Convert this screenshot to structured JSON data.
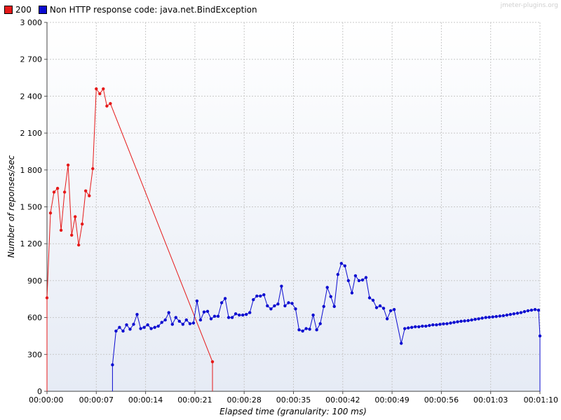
{
  "watermark": "jmeter-plugins.org",
  "colors": {
    "series_200": "#e61919",
    "series_bind": "#0b0bd0",
    "grid": "#c8c8c8",
    "plot_bg_top": "#ffffff",
    "plot_bg_bottom": "#e6ebf5"
  },
  "chart_data": {
    "type": "line",
    "title": "",
    "xlabel": "Elapsed time (granularity: 100 ms)",
    "ylabel": "Number of reponses/sec",
    "xlim_seconds": [
      0,
      70
    ],
    "ylim": [
      0,
      3000
    ],
    "y_ticks": [
      0,
      300,
      600,
      900,
      1200,
      1500,
      1800,
      2100,
      2400,
      2700,
      3000
    ],
    "y_tick_labels": [
      "0",
      "300",
      "600",
      "900",
      "1 200",
      "1 500",
      "1 800",
      "2 100",
      "2 400",
      "2 700",
      "3 000"
    ],
    "x_ticks_seconds": [
      0,
      7,
      14,
      21,
      28,
      35,
      42,
      49,
      56,
      63,
      70
    ],
    "x_tick_labels": [
      "00:00:00",
      "00:00:07",
      "00:00:14",
      "00:00:21",
      "00:00:28",
      "00:00:35",
      "00:00:42",
      "00:00:49",
      "00:00:56",
      "00:01:03",
      "00:01:10"
    ],
    "grid": true,
    "legend_position": "top-left",
    "series": [
      {
        "name": "200",
        "x_seconds": [
          0.0,
          0.0,
          0.5,
          1.0,
          1.5,
          2.0,
          2.5,
          3.0,
          3.5,
          4.0,
          4.5,
          5.0,
          5.5,
          6.0,
          6.5,
          7.0,
          7.5,
          8.0,
          8.5,
          9.0,
          23.5,
          23.5
        ],
        "values": [
          0,
          760,
          1450,
          1620,
          1650,
          1310,
          1620,
          1840,
          1270,
          1420,
          1190,
          1360,
          1630,
          1590,
          1810,
          2460,
          2420,
          2460,
          2320,
          2340,
          240,
          0
        ]
      },
      {
        "name": "Non HTTP response code: java.net.BindException",
        "x_seconds": [
          9.3,
          9.3,
          9.8,
          10.3,
          10.8,
          11.3,
          11.8,
          12.3,
          12.8,
          13.3,
          13.8,
          14.3,
          14.8,
          15.3,
          15.8,
          16.3,
          16.8,
          17.3,
          17.8,
          18.3,
          18.8,
          19.3,
          19.8,
          20.3,
          20.8,
          21.3,
          21.8,
          22.3,
          22.8,
          23.3,
          23.8,
          24.3,
          24.8,
          25.3,
          25.8,
          26.3,
          26.8,
          27.3,
          27.8,
          28.3,
          28.8,
          29.3,
          29.8,
          30.3,
          30.8,
          31.3,
          31.8,
          32.3,
          32.8,
          33.3,
          33.8,
          34.3,
          34.8,
          35.3,
          35.8,
          36.3,
          36.8,
          37.3,
          37.8,
          38.3,
          38.8,
          39.3,
          39.8,
          40.3,
          40.8,
          41.3,
          41.8,
          42.3,
          42.8,
          43.3,
          43.8,
          44.3,
          44.8,
          45.3,
          45.8,
          46.3,
          46.8,
          47.3,
          47.8,
          48.3,
          48.8,
          49.3,
          50.3,
          50.8,
          51.3,
          51.8,
          52.3,
          52.8,
          53.3,
          53.8,
          54.3,
          54.8,
          55.3,
          55.8,
          56.3,
          56.8,
          57.3,
          57.8,
          58.3,
          58.8,
          59.3,
          59.8,
          60.3,
          60.8,
          61.3,
          61.8,
          62.3,
          62.8,
          63.3,
          63.8,
          64.3,
          64.8,
          65.3,
          65.8,
          66.3,
          66.8,
          67.3,
          67.8,
          68.3,
          68.8,
          69.3,
          69.8,
          70.0,
          70.0
        ],
        "values": [
          0,
          215,
          490,
          520,
          490,
          540,
          505,
          545,
          625,
          510,
          520,
          540,
          510,
          520,
          530,
          560,
          580,
          640,
          545,
          600,
          570,
          545,
          580,
          550,
          555,
          735,
          580,
          645,
          650,
          590,
          610,
          610,
          720,
          755,
          600,
          600,
          630,
          620,
          620,
          625,
          640,
          745,
          775,
          775,
          785,
          695,
          670,
          695,
          710,
          855,
          695,
          720,
          715,
          670,
          500,
          490,
          510,
          505,
          620,
          500,
          550,
          690,
          845,
          770,
          690,
          950,
          1040,
          1020,
          900,
          800,
          940,
          900,
          905,
          925,
          760,
          740,
          680,
          695,
          675,
          590,
          655,
          665,
          390,
          510,
          515,
          520,
          525,
          525,
          530,
          530,
          535,
          540,
          540,
          545,
          548,
          550,
          555,
          560,
          565,
          570,
          572,
          575,
          580,
          585,
          590,
          595,
          600,
          602,
          605,
          608,
          612,
          615,
          620,
          625,
          630,
          635,
          640,
          648,
          655,
          660,
          665,
          660,
          450,
          0
        ]
      }
    ]
  }
}
